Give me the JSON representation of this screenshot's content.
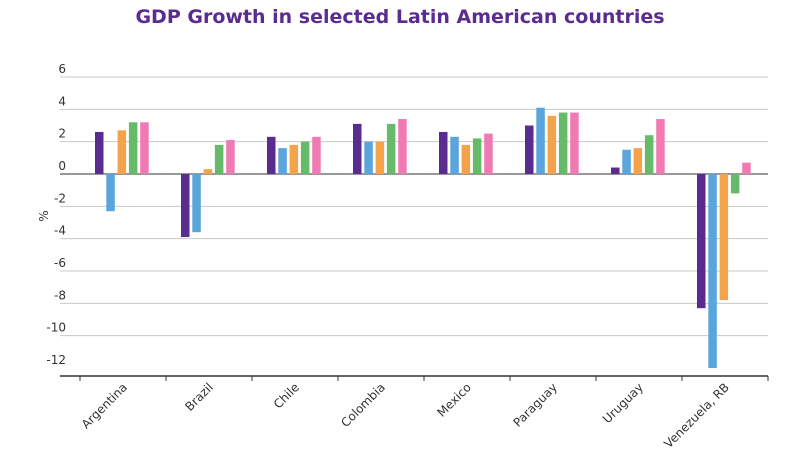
{
  "chart_data": {
    "type": "bar",
    "title": "GDP Growth in selected Latin American countries",
    "xlabel": "",
    "ylabel": "%",
    "ylim": [
      -12,
      6
    ],
    "yticks": [
      6,
      4,
      2,
      0,
      -2,
      -4,
      -6,
      -8,
      -10,
      -12
    ],
    "grid": true,
    "legend": "none",
    "categories": [
      "Argentina",
      "Brazil",
      "Chile",
      "Colombia",
      "Mexico",
      "Paraguay",
      "Uruguay",
      "Venezuela, RB"
    ],
    "series": [
      {
        "color": "#5b2c8f",
        "values": [
          2.6,
          -3.9,
          2.3,
          3.1,
          2.6,
          3.0,
          0.4,
          -8.3
        ]
      },
      {
        "color": "#5aa5dc",
        "values": [
          -2.3,
          -3.6,
          1.6,
          2.0,
          2.3,
          4.1,
          1.5,
          -12.0
        ]
      },
      {
        "color": "#f5a34a",
        "values": [
          2.7,
          0.3,
          1.8,
          2.0,
          1.8,
          3.6,
          1.6,
          -7.8
        ]
      },
      {
        "color": "#66bb6a",
        "values": [
          3.2,
          1.8,
          2.0,
          3.1,
          2.2,
          3.8,
          2.4,
          -1.2
        ]
      },
      {
        "color": "#f07ab4",
        "values": [
          3.2,
          2.1,
          2.3,
          3.4,
          2.5,
          3.8,
          3.4,
          0.7
        ]
      }
    ]
  }
}
